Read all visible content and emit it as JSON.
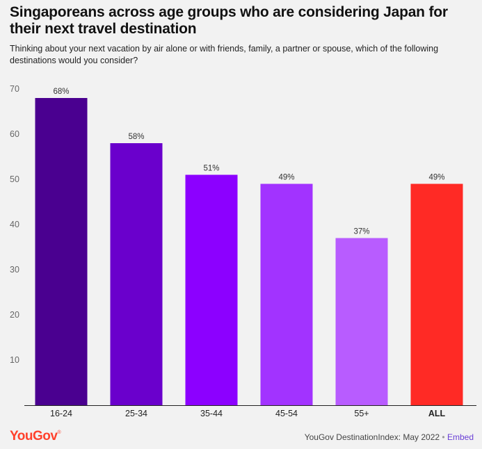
{
  "title": "Singaporeans across age groups who are considering Japan for their next travel destination",
  "subtitle": "Thinking about your next vacation by air alone or with friends, family, a partner or spouse, which of the following destinations would you consider?",
  "footer": {
    "brand": "YouGov",
    "source": "YouGov DestinationIndex: May 2022",
    "separator": "•",
    "embed": "Embed"
  },
  "colors": {
    "brand": "#ff412c",
    "embed_link": "#6a3fd6"
  },
  "chart_data": {
    "type": "bar",
    "categories": [
      "16-24",
      "25-34",
      "35-44",
      "45-54",
      "55+",
      "ALL"
    ],
    "values": [
      68,
      58,
      51,
      49,
      37,
      49
    ],
    "value_labels": [
      "68%",
      "58%",
      "51%",
      "49%",
      "37%",
      "49%"
    ],
    "colors": [
      "#4a0090",
      "#6a00cc",
      "#8c00ff",
      "#a233ff",
      "#b85cff",
      "#ff2a25"
    ],
    "yticks": [
      10,
      20,
      30,
      40,
      50,
      60,
      70
    ],
    "ylim": [
      0,
      70
    ],
    "bold_categories": [
      "ALL"
    ],
    "grid": false
  }
}
